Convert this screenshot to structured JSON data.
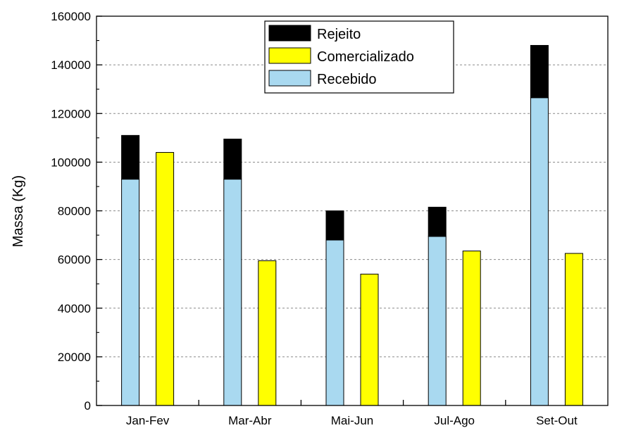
{
  "chart_data": {
    "type": "bar",
    "stacked_series_note": "",
    "categories": [
      "Jan-Fev",
      "Mar-Abr",
      "Mai-Jun",
      "Jul-Ago",
      "Set-Out"
    ],
    "series": [
      {
        "name": "Recebido",
        "values": [
          93000,
          93000,
          68000,
          69500,
          126500
        ],
        "color": "#a9d9f0",
        "group": "left",
        "stack_order": 0
      },
      {
        "name": "Rejeito",
        "values": [
          18000,
          16500,
          12000,
          12000,
          21500
        ],
        "color": "#000000",
        "group": "left",
        "stack_order": 1
      },
      {
        "name": "Comercializado",
        "values": [
          104000,
          59500,
          54000,
          63500,
          62500
        ],
        "color": "#ffff00",
        "group": "right",
        "stack_order": 0
      }
    ],
    "legend_order": [
      "Rejeito",
      "Comercializado",
      "Recebido"
    ],
    "legend_position": "top-center",
    "xlabel": "",
    "ylabel": "Massa (Kg)",
    "ylim": [
      0,
      160000
    ],
    "yticks": [
      0,
      20000,
      40000,
      60000,
      80000,
      100000,
      120000,
      140000,
      160000
    ],
    "grid": "horizontal dashed",
    "title": ""
  }
}
